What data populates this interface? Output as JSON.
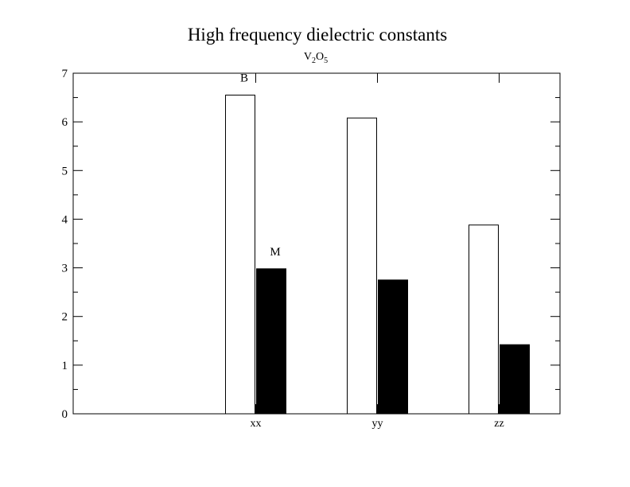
{
  "chart_data": {
    "type": "bar",
    "title": "High frequency dielectric constants",
    "subtitle": {
      "base1": "V",
      "sub1": "2",
      "base2": "O",
      "sub2": "5"
    },
    "xlabel": "",
    "ylabel": "",
    "categories": [
      "xx",
      "yy",
      "zz"
    ],
    "series": [
      {
        "name": "B",
        "fill": "#ffffff",
        "values": [
          6.55,
          6.08,
          3.88
        ]
      },
      {
        "name": "M",
        "fill": "#000000",
        "values": [
          2.98,
          2.75,
          1.42
        ]
      }
    ],
    "ylim": [
      0,
      7
    ],
    "yticks": [
      0,
      1,
      2,
      3,
      4,
      5,
      6,
      7
    ],
    "xlim": [
      -1,
      3
    ],
    "category_positions": [
      0.5,
      1.5,
      2.5
    ],
    "grid": false,
    "bar_annotations": [
      {
        "text": "B",
        "series": 0,
        "category": 0
      },
      {
        "text": "M",
        "series": 1,
        "category": 0
      }
    ],
    "colors": {
      "axis": "#000000",
      "bar_outline": "#000000"
    }
  }
}
